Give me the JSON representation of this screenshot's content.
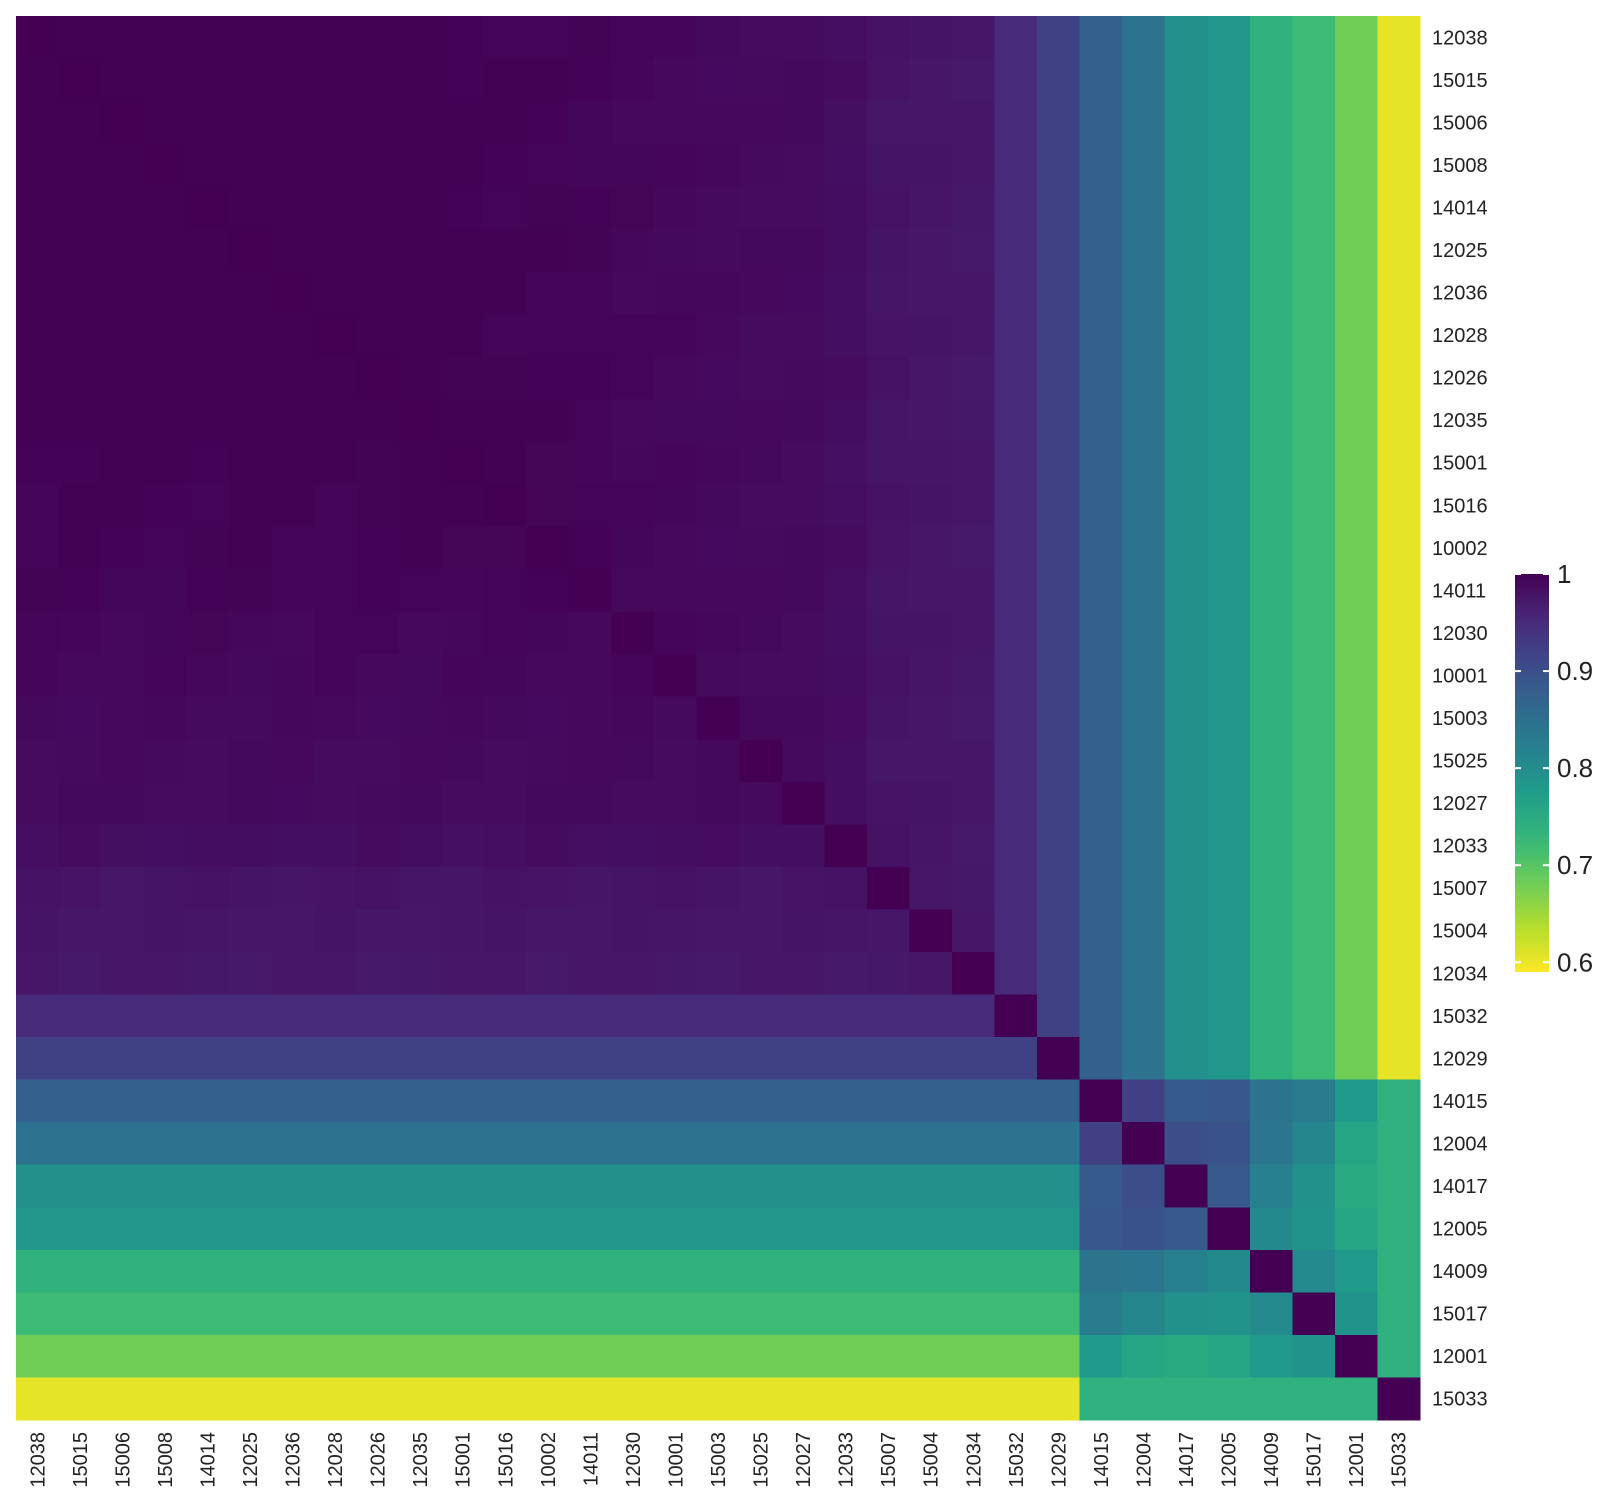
{
  "chart_data": {
    "type": "heatmap",
    "title": "",
    "xlabel": "",
    "ylabel": "",
    "labels": [
      "12038",
      "15015",
      "15006",
      "15008",
      "14014",
      "12025",
      "12036",
      "12028",
      "12026",
      "12035",
      "15001",
      "15016",
      "10002",
      "14011",
      "12030",
      "10001",
      "15003",
      "15025",
      "12027",
      "12033",
      "15007",
      "15004",
      "12034",
      "15032",
      "12029",
      "14015",
      "12004",
      "14017",
      "12005",
      "14009",
      "15017",
      "12001",
      "15033"
    ],
    "row_values": [
      1,
      0.999,
      0.998,
      0.997,
      0.996,
      0.996,
      0.995,
      0.995,
      0.994,
      0.993,
      0.991,
      0.99,
      0.989,
      0.988,
      0.986,
      0.985,
      0.983,
      0.982,
      0.981,
      0.977,
      0.97,
      0.968,
      0.966,
      0.95,
      0.92,
      0.875,
      0.845,
      0.795,
      0.785,
      0.735,
      0.72,
      0.68,
      0.605
    ],
    "colorbar": {
      "ticks": [
        "1",
        "0.9",
        "0.8",
        "0.7",
        "0.6"
      ],
      "tick_values": [
        1.0,
        0.9,
        0.8,
        0.7,
        0.6
      ],
      "range": [
        0.59,
        1.0
      ],
      "colormap": "viridis-reversed"
    },
    "grid": false,
    "legend_position": "right"
  }
}
